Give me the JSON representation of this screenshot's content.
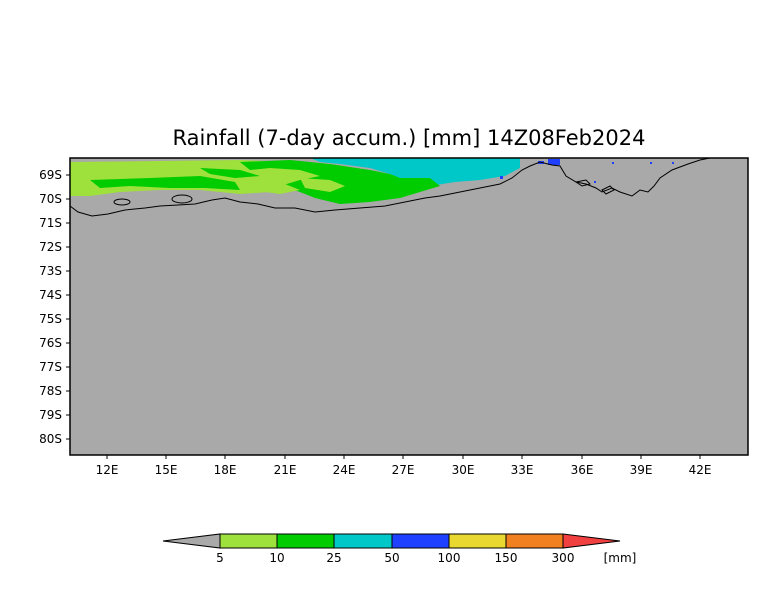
{
  "map": {
    "title": "Rainfall (7-day accum.) [mm] 14Z08Feb2024",
    "lat_labels": [
      "69S",
      "70S",
      "71S",
      "72S",
      "73S",
      "74S",
      "75S",
      "76S",
      "77S",
      "78S",
      "79S",
      "80S"
    ],
    "lon_labels": [
      "12E",
      "15E",
      "18E",
      "21E",
      "24E",
      "27E",
      "30E",
      "33E",
      "36E",
      "39E",
      "42E"
    ],
    "background_color": "#a9a9a9",
    "coastline_color": "#000000"
  },
  "colorbar": {
    "levels": [
      "5",
      "10",
      "25",
      "50",
      "100",
      "150",
      "300"
    ],
    "unit": "[mm]",
    "colors": [
      "#a9a9a9",
      "#9ee03c",
      "#00cc00",
      "#00c8c8",
      "#2040ff",
      "#e8d830",
      "#f08020",
      "#f04040"
    ]
  }
}
